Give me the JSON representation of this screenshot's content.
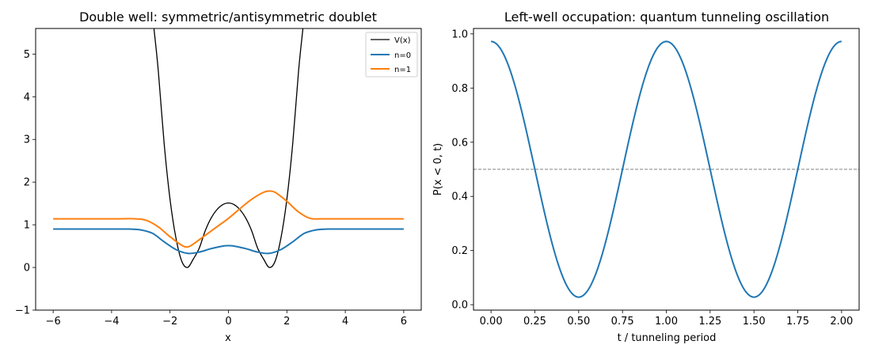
{
  "chart_data": [
    {
      "type": "line",
      "title": "Double well: symmetric/antisymmetric doublet",
      "xlabel": "x",
      "ylabel": "",
      "xlim": [
        -6.6,
        6.6
      ],
      "ylim": [
        -1,
        5.6
      ],
      "xticks": [
        -6,
        -4,
        -2,
        0,
        2,
        4,
        6
      ],
      "xtick_labels": [
        "−6",
        "−4",
        "−2",
        "0",
        "2",
        "4",
        "6"
      ],
      "yticks": [
        -1,
        0,
        1,
        2,
        3,
        4,
        5
      ],
      "ytick_labels": [
        "−1",
        "0",
        "1",
        "2",
        "3",
        "4",
        "5"
      ],
      "grid": false,
      "legend_position": "top-right",
      "series": [
        {
          "name": "V(x)",
          "color": "#000000",
          "x": [
            -2.55,
            -2.4,
            -2.2,
            -2.0,
            -1.8,
            -1.6,
            -1.4,
            -1.2,
            -1.0,
            -0.8,
            -0.6,
            -0.4,
            -0.2,
            0,
            0.2,
            0.4,
            0.6,
            0.8,
            1.0,
            1.2,
            1.4,
            1.6,
            1.8,
            2.0,
            2.2,
            2.4,
            2.55
          ],
          "y": [
            5.6,
            4.6,
            2.9,
            1.6,
            0.7,
            0.15,
            0.0,
            0.2,
            0.45,
            0.85,
            1.15,
            1.35,
            1.47,
            1.51,
            1.47,
            1.35,
            1.15,
            0.85,
            0.45,
            0.2,
            0.0,
            0.15,
            0.7,
            1.6,
            2.9,
            4.6,
            5.6
          ]
        },
        {
          "name": "n=0",
          "color": "#1f77b4",
          "x": [
            -6,
            -4,
            -3.4,
            -3.0,
            -2.6,
            -2.2,
            -1.8,
            -1.4,
            -1.0,
            -0.6,
            -0.2,
            0,
            0.2,
            0.6,
            1.0,
            1.4,
            1.8,
            2.2,
            2.6,
            3.0,
            3.4,
            4,
            6
          ],
          "y": [
            0.9,
            0.9,
            0.9,
            0.88,
            0.8,
            0.6,
            0.42,
            0.33,
            0.36,
            0.44,
            0.5,
            0.51,
            0.5,
            0.44,
            0.36,
            0.33,
            0.42,
            0.6,
            0.8,
            0.88,
            0.9,
            0.9,
            0.9
          ]
        },
        {
          "name": "n=1",
          "color": "#ff7f0e",
          "x": [
            -6,
            -4,
            -3.2,
            -2.8,
            -2.4,
            -2.0,
            -1.6,
            -1.4,
            -1.2,
            -0.8,
            -0.4,
            0,
            0.4,
            0.8,
            1.2,
            1.4,
            1.6,
            2.0,
            2.4,
            2.8,
            3.2,
            4,
            6
          ],
          "y": [
            1.14,
            1.14,
            1.14,
            1.1,
            0.95,
            0.72,
            0.52,
            0.48,
            0.55,
            0.75,
            0.95,
            1.15,
            1.38,
            1.6,
            1.76,
            1.79,
            1.76,
            1.55,
            1.3,
            1.15,
            1.14,
            1.14,
            1.14
          ]
        }
      ]
    },
    {
      "type": "line",
      "title": "Left-well occupation: quantum tunneling oscillation",
      "xlabel": "t / tunneling period",
      "ylabel": "P(x < 0, t)",
      "xlim": [
        -0.1,
        2.1
      ],
      "ylim": [
        -0.02,
        1.02
      ],
      "xticks": [
        0,
        0.25,
        0.5,
        0.75,
        1.0,
        1.25,
        1.5,
        1.75,
        2.0
      ],
      "xtick_labels": [
        "0.00",
        "0.25",
        "0.50",
        "0.75",
        "1.00",
        "1.25",
        "1.50",
        "1.75",
        "2.00"
      ],
      "yticks": [
        0,
        0.2,
        0.4,
        0.6,
        0.8,
        1.0
      ],
      "ytick_labels": [
        "0.0",
        "0.2",
        "0.4",
        "0.6",
        "0.8",
        "1.0"
      ],
      "grid": false,
      "reference_line": {
        "y": 0.5,
        "style": "dashed",
        "color": "#808080"
      },
      "series": [
        {
          "color": "#1f77b4",
          "x": [
            0,
            0.125,
            0.25,
            0.375,
            0.5,
            0.625,
            0.75,
            0.875,
            1.0,
            1.125,
            1.25,
            1.375,
            1.5,
            1.625,
            1.75,
            1.875,
            2.0
          ],
          "y": [
            0.972,
            0.846,
            0.5,
            0.154,
            0.028,
            0.154,
            0.5,
            0.846,
            0.972,
            0.846,
            0.5,
            0.154,
            0.028,
            0.154,
            0.5,
            0.846,
            0.972
          ]
        }
      ]
    }
  ]
}
